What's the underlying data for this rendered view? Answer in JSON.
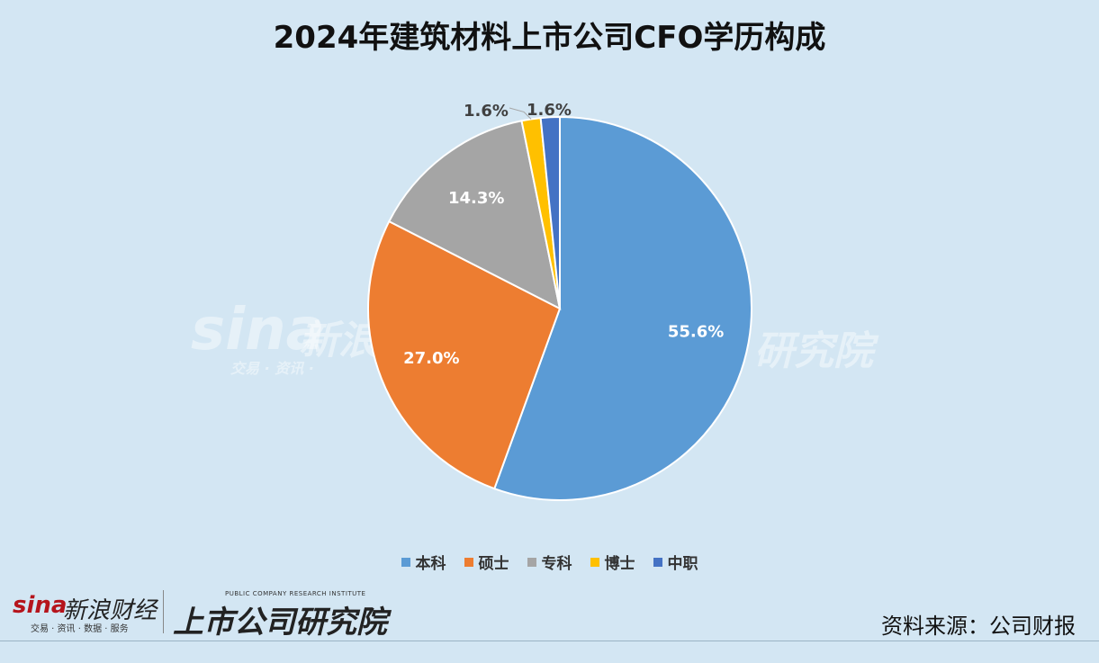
{
  "chart_data": {
    "type": "pie",
    "title": "2024年建筑材料上市公司CFO学历构成",
    "categories": [
      "本科",
      "硕士",
      "专科",
      "博士",
      "中职"
    ],
    "values": [
      55.6,
      27.0,
      14.3,
      1.6,
      1.6
    ],
    "labels": [
      "55.6%",
      "27.0%",
      "14.3%",
      "1.6%",
      "1.6%"
    ],
    "colors": [
      "#5b9bd5",
      "#ed7d31",
      "#a5a5a5",
      "#ffc000",
      "#4472c4"
    ],
    "legend_position": "bottom"
  },
  "watermark": {
    "sina": "sina",
    "sina_cn": "新浪",
    "sina_sub": "交易 · 资讯 ·",
    "ir_cn": "研究院"
  },
  "footer": {
    "source": "资料来源：公司财报",
    "sina_logo": "sina",
    "sina_logo_cn": "新浪财经",
    "sina_logo_sub": "交易 · 资讯 · 数据 · 服务",
    "ir_logo": "上市公司研究院",
    "ir_logo_sub": "PUBLIC COMPANY RESEARCH INSTITUTE"
  }
}
